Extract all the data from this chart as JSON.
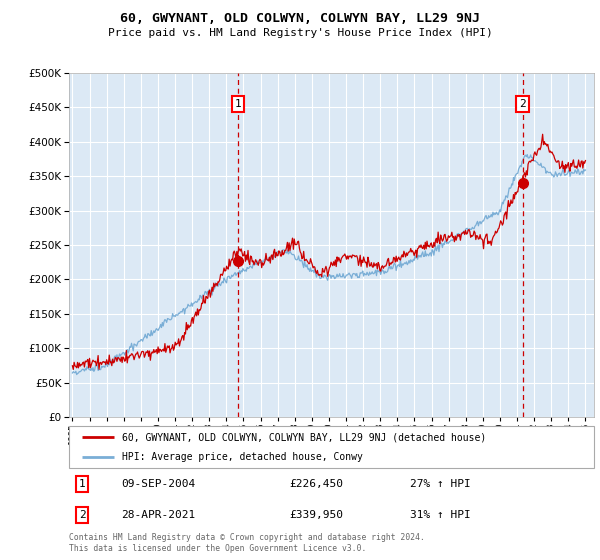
{
  "title": "60, GWYNANT, OLD COLWYN, COLWYN BAY, LL29 9NJ",
  "subtitle": "Price paid vs. HM Land Registry's House Price Index (HPI)",
  "bg_color": "#dce9f5",
  "legend_line1": "60, GWYNANT, OLD COLWYN, COLWYN BAY, LL29 9NJ (detached house)",
  "legend_line2": "HPI: Average price, detached house, Conwy",
  "annotation1_label": "1",
  "annotation1_date": "09-SEP-2004",
  "annotation1_price": "£226,450",
  "annotation1_hpi": "27% ↑ HPI",
  "annotation2_label": "2",
  "annotation2_date": "28-APR-2021",
  "annotation2_price": "£339,950",
  "annotation2_hpi": "31% ↑ HPI",
  "footer": "Contains HM Land Registry data © Crown copyright and database right 2024.\nThis data is licensed under the Open Government Licence v3.0.",
  "vline1_x": 2004.69,
  "vline2_x": 2021.32,
  "marker1_x": 2004.69,
  "marker1_y": 226450,
  "marker2_x": 2021.32,
  "marker2_y": 339950,
  "ylim": [
    0,
    500000
  ],
  "xlim": [
    1994.8,
    2025.5
  ],
  "yticks": [
    0,
    50000,
    100000,
    150000,
    200000,
    250000,
    300000,
    350000,
    400000,
    450000,
    500000
  ],
  "xticks": [
    1995,
    1996,
    1997,
    1998,
    1999,
    2000,
    2001,
    2002,
    2003,
    2004,
    2005,
    2006,
    2007,
    2008,
    2009,
    2010,
    2011,
    2012,
    2013,
    2014,
    2015,
    2016,
    2017,
    2018,
    2019,
    2020,
    2021,
    2022,
    2023,
    2024,
    2025
  ],
  "red_color": "#cc0000",
  "blue_color": "#7aaed6",
  "vline_color": "#cc0000",
  "white": "#ffffff",
  "gray": "#888888"
}
